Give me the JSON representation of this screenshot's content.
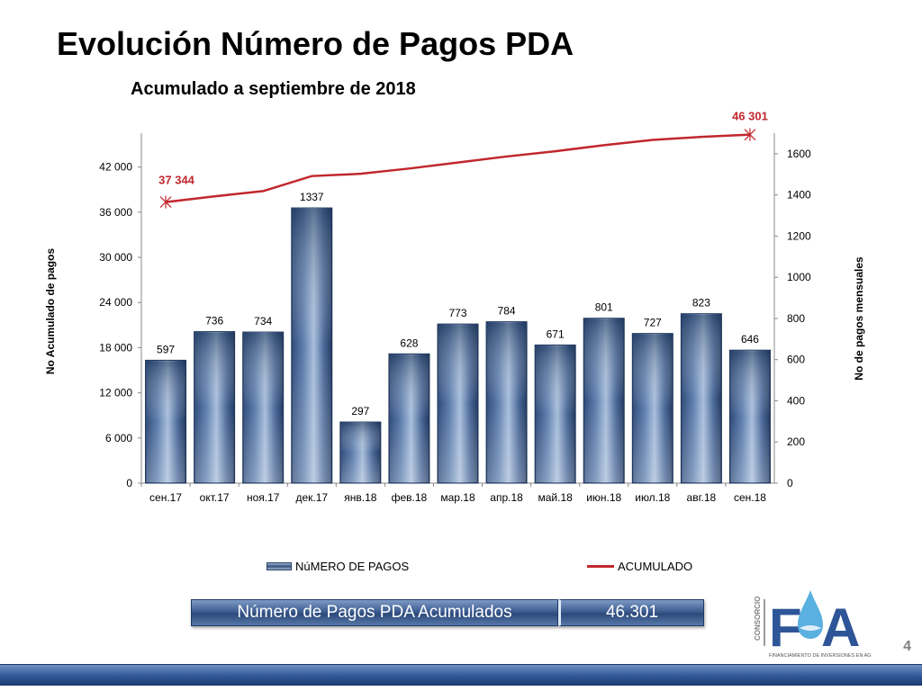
{
  "page": {
    "title": "Evolución Número de Pagos PDA",
    "subtitle": "Acumulado a septiembre de 2018",
    "page_number": "4"
  },
  "legend": {
    "bars_label": "NúMERO DE PAGOS",
    "line_label": "ACUMULADO"
  },
  "summary": {
    "label": "Número de Pagos PDA Acumulados",
    "value": "46.301"
  },
  "colors": {
    "bar_dark": "#2e4a78",
    "bar_light": "#a8bedb",
    "line": "#c0272d",
    "summary_bg": "#3d5d91"
  },
  "chart_data": {
    "type": "bar",
    "categories": [
      "сен.17",
      "окт.17",
      "ноя.17",
      "дек.17",
      "янв.18",
      "фев.18",
      "мар.18",
      "апр.18",
      "май.18",
      "июн.18",
      "июл.18",
      "авг.18",
      "сен.18"
    ],
    "series": [
      {
        "name": "NúMERO DE PAGOS",
        "type": "bar",
        "axis": "right",
        "values": [
          597,
          736,
          734,
          1337,
          297,
          628,
          773,
          784,
          671,
          801,
          727,
          823,
          646
        ],
        "data_labels": [
          "597",
          "736",
          "734",
          "1337",
          "297",
          "628",
          "773",
          "784",
          "671",
          "801",
          "727",
          "823",
          "646"
        ]
      },
      {
        "name": "ACUMULADO",
        "type": "line",
        "axis": "left",
        "values": [
          37344,
          38100,
          38800,
          40800,
          41100,
          41800,
          42600,
          43400,
          44100,
          44900,
          45600,
          46000,
          46301
        ],
        "point_labels": [
          {
            "index": 0,
            "text": "37 344"
          },
          {
            "index": 12,
            "text": "46 301"
          }
        ]
      }
    ],
    "left_axis": {
      "label": "No Acumulado de pagos",
      "ylim": [
        0,
        46500
      ],
      "ticks": [
        0,
        6000,
        12000,
        18000,
        24000,
        30000,
        36000,
        42000
      ],
      "tick_labels": [
        "0",
        "6 000",
        "12 000",
        "18 000",
        "24 000",
        "30 000",
        "36 000",
        "42 000"
      ]
    },
    "right_axis": {
      "label": "No de pagos mensuales",
      "ylim": [
        0,
        1700
      ],
      "ticks": [
        0,
        200,
        400,
        600,
        800,
        1000,
        1200,
        1400,
        1600
      ],
      "tick_labels": [
        "0",
        "200",
        "400",
        "600",
        "800",
        "1000",
        "1200",
        "1400",
        "1600"
      ]
    },
    "grid": false,
    "legend_position": "bottom"
  }
}
